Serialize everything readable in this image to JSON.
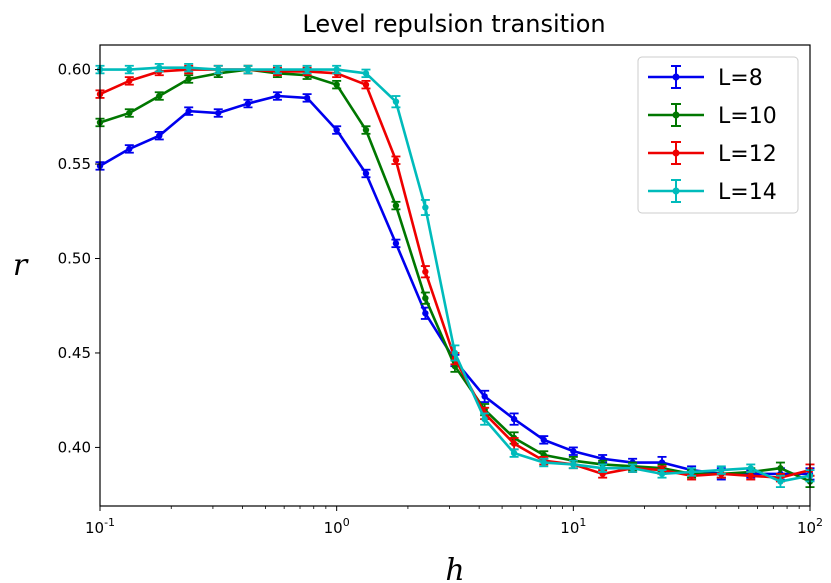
{
  "chart_data": {
    "type": "line",
    "title": "Level repulsion transition",
    "xlabel": "h",
    "ylabel": "r",
    "xscale": "log",
    "xlim": [
      0.1,
      100
    ],
    "ylim": [
      0.369,
      0.613
    ],
    "xticks": [
      {
        "value": 0.1,
        "base": "10",
        "exp": "-1"
      },
      {
        "value": 1,
        "base": "10",
        "exp": "0"
      },
      {
        "value": 10,
        "base": "10",
        "exp": "1"
      },
      {
        "value": 100,
        "base": "10",
        "exp": "2"
      }
    ],
    "yticks": [
      {
        "value": 0.4,
        "label": "0.40"
      },
      {
        "value": 0.45,
        "label": "0.45"
      },
      {
        "value": 0.5,
        "label": "0.50"
      },
      {
        "value": 0.55,
        "label": "0.55"
      },
      {
        "value": 0.6,
        "label": "0.60"
      }
    ],
    "legend_position": "top-right",
    "x": [
      0.1,
      0.133,
      0.178,
      0.237,
      0.316,
      0.422,
      0.562,
      0.75,
      1.0,
      1.33,
      1.78,
      2.37,
      3.16,
      4.22,
      5.62,
      7.5,
      10.0,
      13.3,
      17.8,
      23.7,
      31.6,
      42.2,
      56.2,
      75.0,
      100.0
    ],
    "series": [
      {
        "name": "L=8",
        "color": "#0000ee",
        "values": [
          0.549,
          0.558,
          0.565,
          0.578,
          0.577,
          0.582,
          0.586,
          0.585,
          0.568,
          0.545,
          0.508,
          0.471,
          0.446,
          0.427,
          0.415,
          0.404,
          0.398,
          0.394,
          0.392,
          0.392,
          0.388,
          0.386,
          0.386,
          0.386,
          0.386
        ],
        "errors": [
          0.002,
          0.002,
          0.002,
          0.002,
          0.002,
          0.002,
          0.002,
          0.002,
          0.002,
          0.002,
          0.002,
          0.003,
          0.003,
          0.003,
          0.003,
          0.002,
          0.002,
          0.002,
          0.002,
          0.003,
          0.002,
          0.003,
          0.002,
          0.003,
          0.003
        ]
      },
      {
        "name": "L=10",
        "color": "#007700",
        "values": [
          0.572,
          0.577,
          0.586,
          0.595,
          0.598,
          0.6,
          0.598,
          0.597,
          0.592,
          0.568,
          0.528,
          0.479,
          0.443,
          0.42,
          0.405,
          0.396,
          0.393,
          0.391,
          0.39,
          0.389,
          0.386,
          0.386,
          0.387,
          0.389,
          0.382
        ],
        "errors": [
          0.002,
          0.002,
          0.002,
          0.002,
          0.002,
          0.002,
          0.002,
          0.002,
          0.002,
          0.002,
          0.002,
          0.003,
          0.003,
          0.003,
          0.003,
          0.002,
          0.002,
          0.002,
          0.002,
          0.002,
          0.002,
          0.002,
          0.002,
          0.003,
          0.003
        ]
      },
      {
        "name": "L=12",
        "color": "#ee0000",
        "values": [
          0.587,
          0.594,
          0.599,
          0.6,
          0.6,
          0.6,
          0.599,
          0.599,
          0.598,
          0.592,
          0.552,
          0.493,
          0.447,
          0.418,
          0.402,
          0.393,
          0.391,
          0.386,
          0.389,
          0.388,
          0.385,
          0.386,
          0.385,
          0.384,
          0.388
        ],
        "errors": [
          0.002,
          0.002,
          0.002,
          0.002,
          0.002,
          0.002,
          0.002,
          0.002,
          0.002,
          0.002,
          0.002,
          0.003,
          0.003,
          0.003,
          0.003,
          0.002,
          0.002,
          0.002,
          0.002,
          0.002,
          0.002,
          0.002,
          0.002,
          0.002,
          0.003
        ]
      },
      {
        "name": "L=14",
        "color": "#00bbbb",
        "values": [
          0.6,
          0.6,
          0.601,
          0.601,
          0.6,
          0.6,
          0.6,
          0.6,
          0.6,
          0.598,
          0.583,
          0.527,
          0.45,
          0.415,
          0.397,
          0.392,
          0.391,
          0.389,
          0.389,
          0.386,
          0.387,
          0.388,
          0.389,
          0.382,
          0.385
        ],
        "errors": [
          0.002,
          0.002,
          0.002,
          0.002,
          0.002,
          0.002,
          0.002,
          0.002,
          0.002,
          0.002,
          0.003,
          0.004,
          0.004,
          0.003,
          0.002,
          0.002,
          0.002,
          0.002,
          0.002,
          0.002,
          0.002,
          0.002,
          0.002,
          0.003,
          0.003
        ]
      }
    ]
  }
}
